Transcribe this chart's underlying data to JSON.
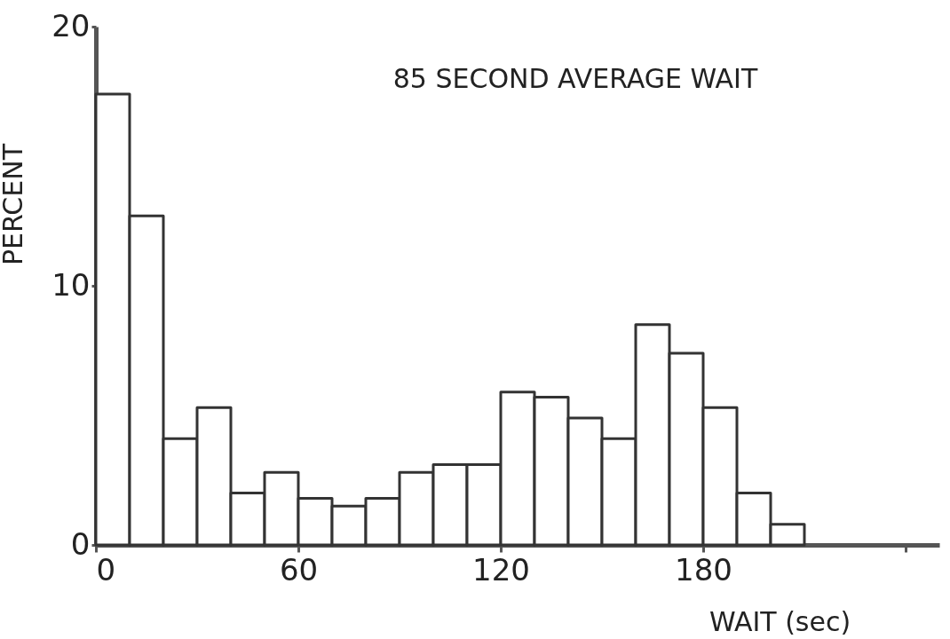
{
  "chart_data": {
    "type": "histogram",
    "xlabel": "WAIT (sec)",
    "ylabel": "PERCENT",
    "annotations": [
      "85 SECOND AVERAGE WAIT"
    ],
    "bins": [
      0,
      10,
      20,
      30,
      40,
      50,
      60,
      70,
      80,
      90,
      100,
      110,
      120,
      130,
      140,
      150,
      160,
      170,
      180,
      190,
      200,
      210
    ],
    "values": [
      17.4,
      12.7,
      4.1,
      5.3,
      2.0,
      2.8,
      1.8,
      1.5,
      1.8,
      2.8,
      3.1,
      3.1,
      5.9,
      5.7,
      4.9,
      4.1,
      8.5,
      7.4,
      5.3,
      2.0,
      0.8
    ],
    "color": "#ffffff",
    "xlim": [
      0,
      250
    ],
    "xticks": [
      0,
      60,
      120,
      180,
      {
        "value": 240,
        "label": null
      }
    ],
    "ylim": [
      0,
      20
    ],
    "yticks": [
      0,
      10,
      20
    ],
    "grid": false
  }
}
